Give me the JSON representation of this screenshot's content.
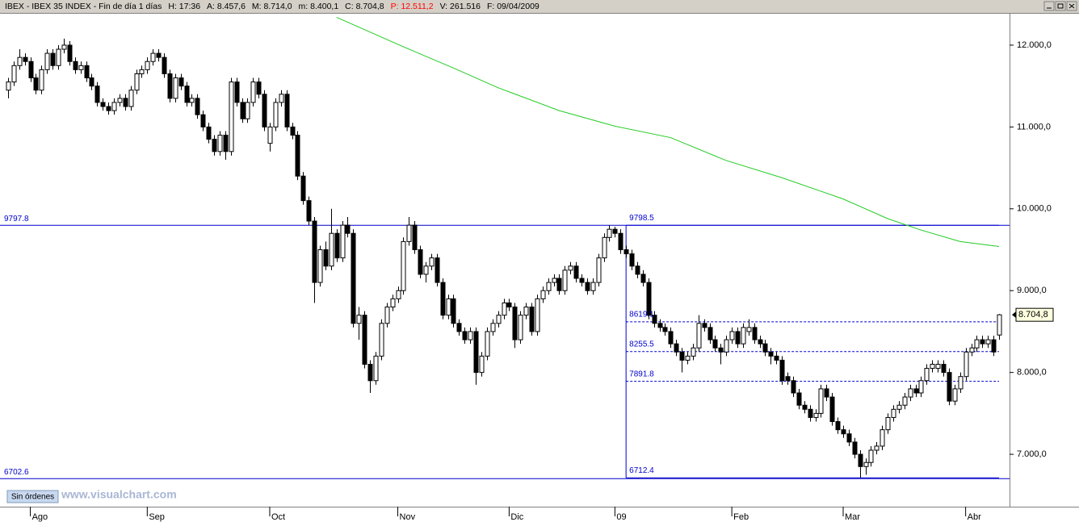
{
  "chart_data": {
    "type": "candlestick",
    "title": "IBEX - IBEX 35 INDEX - Fin de día 1 días",
    "stats": [
      {
        "text": "H: 17:36",
        "color": "#000000"
      },
      {
        "text": "A: 8.457,6",
        "color": "#000000"
      },
      {
        "text": "M: 8.714,0",
        "color": "#000000"
      },
      {
        "text": "m: 8.400,1",
        "color": "#000000"
      },
      {
        "text": "C: 8.704,8",
        "color": "#000000"
      },
      {
        "text": "P: 12.511,2",
        "color": "#ff0000"
      },
      {
        "text": "V: 261.516",
        "color": "#000000"
      },
      {
        "text": "F: 09/04/2009",
        "color": "#000000"
      }
    ],
    "button": "Sin órdenes",
    "watermark": "www.visualchart.com",
    "ylim": [
      6360,
      12384
    ],
    "yticks": [
      {
        "value": 7000,
        "label": "7.000,0"
      },
      {
        "value": 8000,
        "label": "8.000,0"
      },
      {
        "value": 9000,
        "label": "9.000,0"
      },
      {
        "value": 10000,
        "label": "10.000,0"
      },
      {
        "value": 11000,
        "label": "11.000,0"
      },
      {
        "value": 12000,
        "label": "12.000,0"
      }
    ],
    "xticks": [
      {
        "value": 4,
        "label": "Ago"
      },
      {
        "value": 25,
        "label": "Sep"
      },
      {
        "value": 47,
        "label": "Oct"
      },
      {
        "value": 70,
        "label": "Nov"
      },
      {
        "value": 90,
        "label": "Dic"
      },
      {
        "value": 109,
        "label": "09"
      },
      {
        "value": 130,
        "label": "Feb"
      },
      {
        "value": 150,
        "label": "Mar"
      },
      {
        "value": 172,
        "label": "Abr"
      }
    ],
    "last_price": {
      "value": 8704.8,
      "label": "8.704,8"
    },
    "hlines": [
      9797.8,
      6702.6
    ],
    "fib": {
      "start": 111,
      "end": 178,
      "levels": [
        9798.5,
        8619.1,
        8255.5,
        7891.8,
        6712.4
      ],
      "dashed": [
        false,
        true,
        true,
        true,
        false
      ]
    },
    "line_color": "#0000cc",
    "ma": {
      "color": "#22cc22",
      "x": [
        59,
        71,
        80,
        88,
        99,
        109,
        119,
        129,
        139,
        150,
        158,
        164,
        171,
        178
      ],
      "values": [
        12340,
        11980,
        11720,
        11480,
        11200,
        11010,
        10870,
        10590,
        10380,
        10120,
        9880,
        9740,
        9600,
        9540
      ]
    },
    "candles": [
      [
        11450,
        11600,
        11350,
        11550
      ],
      [
        11550,
        11800,
        11500,
        11750
      ],
      [
        11750,
        11950,
        11700,
        11850
      ],
      [
        11850,
        11900,
        11750,
        11800
      ],
      [
        11800,
        11850,
        11550,
        11600
      ],
      [
        11600,
        11650,
        11400,
        11450
      ],
      [
        11450,
        11750,
        11400,
        11700
      ],
      [
        11700,
        11950,
        11650,
        11900
      ],
      [
        11900,
        11950,
        11700,
        11750
      ],
      [
        11750,
        12000,
        11700,
        11950
      ],
      [
        11950,
        12080,
        11900,
        12000
      ],
      [
        12000,
        12050,
        11750,
        11800
      ],
      [
        11800,
        11850,
        11650,
        11700
      ],
      [
        11700,
        11800,
        11650,
        11750
      ],
      [
        11750,
        11800,
        11550,
        11600
      ],
      [
        11600,
        11650,
        11450,
        11500
      ],
      [
        11500,
        11550,
        11250,
        11300
      ],
      [
        11300,
        11350,
        11200,
        11250
      ],
      [
        11250,
        11300,
        11150,
        11200
      ],
      [
        11200,
        11350,
        11150,
        11300
      ],
      [
        11300,
        11400,
        11250,
        11350
      ],
      [
        11350,
        11400,
        11200,
        11250
      ],
      [
        11250,
        11500,
        11200,
        11450
      ],
      [
        11450,
        11700,
        11400,
        11650
      ],
      [
        11650,
        11750,
        11600,
        11700
      ],
      [
        11700,
        11850,
        11650,
        11800
      ],
      [
        11800,
        11950,
        11750,
        11900
      ],
      [
        11900,
        11950,
        11800,
        11850
      ],
      [
        11850,
        11900,
        11600,
        11650
      ],
      [
        11650,
        11700,
        11300,
        11350
      ],
      [
        11350,
        11650,
        11300,
        11600
      ],
      [
        11600,
        11650,
        11450,
        11500
      ],
      [
        11500,
        11550,
        11250,
        11300
      ],
      [
        11300,
        11400,
        11250,
        11350
      ],
      [
        11350,
        11400,
        11100,
        11150
      ],
      [
        11150,
        11200,
        10950,
        11000
      ],
      [
        11000,
        11050,
        10800,
        10850
      ],
      [
        10850,
        10900,
        10650,
        10700
      ],
      [
        10700,
        10950,
        10650,
        10900
      ],
      [
        10900,
        10950,
        10600,
        10700
      ],
      [
        10700,
        11600,
        10650,
        11550
      ],
      [
        11550,
        11600,
        11250,
        11300
      ],
      [
        11300,
        11350,
        11050,
        11100
      ],
      [
        11100,
        11350,
        11050,
        11300
      ],
      [
        11300,
        11600,
        11250,
        11550
      ],
      [
        11550,
        11600,
        11350,
        11400
      ],
      [
        11400,
        11450,
        10950,
        11000
      ],
      [
        10800,
        11050,
        10700,
        11000
      ],
      [
        11000,
        11350,
        10950,
        11300
      ],
      [
        11300,
        11450,
        11250,
        11400
      ],
      [
        11400,
        11450,
        10950,
        11000
      ],
      [
        11000,
        11050,
        10850,
        10900
      ],
      [
        10900,
        10950,
        10350,
        10400
      ],
      [
        10400,
        10450,
        10050,
        10100
      ],
      [
        10100,
        10150,
        9800,
        9850
      ],
      [
        9850,
        9900,
        8850,
        9100
      ],
      [
        9100,
        9550,
        9050,
        9500
      ],
      [
        9500,
        9600,
        9250,
        9300
      ],
      [
        9300,
        10000,
        9250,
        9700
      ],
      [
        9700,
        9750,
        9350,
        9400
      ],
      [
        9400,
        9850,
        9350,
        9800
      ],
      [
        9800,
        9900,
        9650,
        9700
      ],
      [
        9700,
        9750,
        8550,
        8600
      ],
      [
        8600,
        8800,
        8400,
        8700
      ],
      [
        8700,
        8750,
        8050,
        8100
      ],
      [
        8100,
        8150,
        7750,
        7900
      ],
      [
        7900,
        8250,
        7850,
        8200
      ],
      [
        8200,
        8650,
        8150,
        8600
      ],
      [
        8600,
        8850,
        8550,
        8800
      ],
      [
        8800,
        8950,
        8750,
        8900
      ],
      [
        8900,
        9050,
        8850,
        9000
      ],
      [
        9000,
        9650,
        8950,
        9600
      ],
      [
        9600,
        9900,
        9550,
        9800
      ],
      [
        9800,
        9850,
        9450,
        9500
      ],
      [
        9500,
        9550,
        9150,
        9200
      ],
      [
        9200,
        9350,
        9100,
        9300
      ],
      [
        9300,
        9450,
        9250,
        9400
      ],
      [
        9400,
        9450,
        9050,
        9100
      ],
      [
        9100,
        9150,
        8650,
        8700
      ],
      [
        8700,
        8950,
        8650,
        8900
      ],
      [
        8900,
        8950,
        8550,
        8600
      ],
      [
        8600,
        8650,
        8450,
        8500
      ],
      [
        8500,
        8550,
        8350,
        8400
      ],
      [
        8400,
        8550,
        8350,
        8500
      ],
      [
        8500,
        8550,
        7850,
        8000
      ],
      [
        8000,
        8250,
        7950,
        8200
      ],
      [
        8200,
        8550,
        8150,
        8500
      ],
      [
        8500,
        8650,
        8450,
        8600
      ],
      [
        8600,
        8750,
        8550,
        8700
      ],
      [
        8700,
        8900,
        8650,
        8850
      ],
      [
        8850,
        8900,
        8750,
        8800
      ],
      [
        8800,
        8850,
        8300,
        8400
      ],
      [
        8400,
        8750,
        8350,
        8700
      ],
      [
        8700,
        8850,
        8650,
        8800
      ],
      [
        8800,
        8850,
        8450,
        8500
      ],
      [
        8500,
        8950,
        8450,
        8900
      ],
      [
        8900,
        9050,
        8850,
        9000
      ],
      [
        9000,
        9150,
        8950,
        9100
      ],
      [
        9100,
        9200,
        9050,
        9150
      ],
      [
        9150,
        9200,
        8950,
        9000
      ],
      [
        9000,
        9300,
        8950,
        9250
      ],
      [
        9250,
        9350,
        9200,
        9300
      ],
      [
        9300,
        9350,
        9100,
        9150
      ],
      [
        9150,
        9200,
        9050,
        9100
      ],
      [
        9100,
        9150,
        8950,
        9000
      ],
      [
        9000,
        9150,
        8950,
        9100
      ],
      [
        9100,
        9450,
        9050,
        9400
      ],
      [
        9400,
        9700,
        9350,
        9650
      ],
      [
        9650,
        9798.5,
        9600,
        9750
      ],
      [
        9750,
        9780,
        9650,
        9700
      ],
      [
        9700,
        9750,
        9450,
        9500
      ],
      [
        9500,
        9550,
        9400,
        9450
      ],
      [
        9450,
        9500,
        9250,
        9300
      ],
      [
        9300,
        9350,
        9150,
        9200
      ],
      [
        9200,
        9250,
        9050,
        9100
      ],
      [
        9100,
        9150,
        8650,
        8700
      ],
      [
        8700,
        8750,
        8550,
        8600
      ],
      [
        8600,
        8650,
        8500,
        8550
      ],
      [
        8550,
        8600,
        8450,
        8500
      ],
      [
        8500,
        8550,
        8300,
        8350
      ],
      [
        8350,
        8400,
        8200,
        8250
      ],
      [
        8250,
        8300,
        8000,
        8150
      ],
      [
        8150,
        8250,
        8100,
        8200
      ],
      [
        8200,
        8350,
        8150,
        8300
      ],
      [
        8300,
        8700,
        8250,
        8600
      ],
      [
        8600,
        8650,
        8500,
        8550
      ],
      [
        8550,
        8600,
        8350,
        8400
      ],
      [
        8400,
        8450,
        8250,
        8300
      ],
      [
        8300,
        8350,
        8100,
        8250
      ],
      [
        8250,
        8450,
        8200,
        8400
      ],
      [
        8400,
        8550,
        8350,
        8500
      ],
      [
        8500,
        8550,
        8300,
        8350
      ],
      [
        8350,
        8600,
        8300,
        8550
      ],
      [
        8500,
        8650,
        8450,
        8550
      ],
      [
        8550,
        8600,
        8350,
        8400
      ],
      [
        8400,
        8450,
        8300,
        8350
      ],
      [
        8350,
        8400,
        8200,
        8250
      ],
      [
        8250,
        8300,
        8100,
        8200
      ],
      [
        8200,
        8250,
        8100,
        8150
      ],
      [
        8150,
        8200,
        7850,
        7900
      ],
      [
        7950,
        8000,
        7850,
        7900
      ],
      [
        7900,
        7950,
        7700,
        7750
      ],
      [
        7750,
        7800,
        7550,
        7600
      ],
      [
        7600,
        7650,
        7500,
        7550
      ],
      [
        7550,
        7600,
        7400,
        7450
      ],
      [
        7450,
        7550,
        7400,
        7500
      ],
      [
        7500,
        7850,
        7450,
        7800
      ],
      [
        7800,
        7850,
        7650,
        7700
      ],
      [
        7700,
        7750,
        7350,
        7400
      ],
      [
        7400,
        7450,
        7250,
        7300
      ],
      [
        7300,
        7350,
        7200,
        7250
      ],
      [
        7250,
        7300,
        7100,
        7150
      ],
      [
        7150,
        7200,
        6950,
        7000
      ],
      [
        7000,
        7050,
        6712.4,
        6850
      ],
      [
        6850,
        6950,
        6750,
        6900
      ],
      [
        6900,
        7100,
        6850,
        7050
      ],
      [
        7050,
        7150,
        7000,
        7100
      ],
      [
        7100,
        7350,
        7050,
        7300
      ],
      [
        7300,
        7500,
        7250,
        7450
      ],
      [
        7450,
        7600,
        7400,
        7550
      ],
      [
        7550,
        7650,
        7500,
        7600
      ],
      [
        7600,
        7750,
        7550,
        7700
      ],
      [
        7700,
        7850,
        7650,
        7800
      ],
      [
        7800,
        7850,
        7700,
        7750
      ],
      [
        7750,
        7950,
        7700,
        7900
      ],
      [
        7900,
        8100,
        7850,
        8050
      ],
      [
        8050,
        8150,
        8000,
        8100
      ],
      [
        8050,
        8150,
        8000,
        8100
      ],
      [
        8100,
        8150,
        7950,
        8000
      ],
      [
        8000,
        8050,
        7600,
        7650
      ],
      [
        7650,
        7850,
        7600,
        7800
      ],
      [
        7800,
        8000,
        7750,
        7950
      ],
      [
        7950,
        8300,
        7900,
        8250
      ],
      [
        8250,
        8350,
        8200,
        8300
      ],
      [
        8300,
        8450,
        8250,
        8400
      ],
      [
        8400,
        8450,
        8300,
        8350
      ],
      [
        8350,
        8450,
        8300,
        8400
      ],
      [
        8400,
        8450,
        8200,
        8250
      ],
      [
        8457.6,
        8714,
        8400.1,
        8704.8
      ]
    ]
  }
}
